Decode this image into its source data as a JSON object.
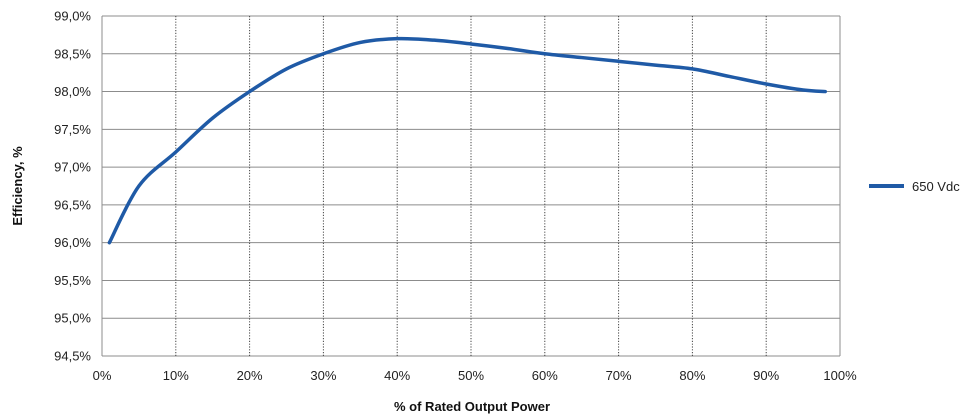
{
  "chart_data": {
    "type": "line",
    "title": "",
    "xlabel": "% of Rated Output Power",
    "ylabel": "Efficiency, %",
    "xlim": [
      0,
      100
    ],
    "ylim": [
      94.5,
      99.0
    ],
    "x_ticks": [
      0,
      10,
      20,
      30,
      40,
      50,
      60,
      70,
      80,
      90,
      100
    ],
    "x_tick_labels": [
      "0%",
      "10%",
      "20%",
      "30%",
      "40%",
      "50%",
      "60%",
      "70%",
      "80%",
      "90%",
      "100%"
    ],
    "y_ticks": [
      94.5,
      95.0,
      95.5,
      96.0,
      96.5,
      97.0,
      97.5,
      98.0,
      98.5,
      99.0
    ],
    "y_tick_labels": [
      "94,5%",
      "95,0%",
      "95,5%",
      "96,0%",
      "96,5%",
      "97,0%",
      "97,5%",
      "98,0%",
      "98,5%",
      "99,0%"
    ],
    "grid": {
      "horizontal": "solid",
      "vertical": "dotted"
    },
    "legend_position": "right",
    "series": [
      {
        "name": "650 Vdc",
        "color": "#1f5aa6",
        "x": [
          1,
          5,
          10,
          15,
          20,
          25,
          30,
          35,
          40,
          45,
          50,
          55,
          60,
          65,
          70,
          75,
          80,
          85,
          90,
          95,
          98
        ],
        "y": [
          96.0,
          96.75,
          97.2,
          97.65,
          98.0,
          98.3,
          98.5,
          98.65,
          98.7,
          98.68,
          98.63,
          98.57,
          98.5,
          98.45,
          98.4,
          98.35,
          98.3,
          98.2,
          98.1,
          98.02,
          98.0
        ]
      }
    ]
  }
}
